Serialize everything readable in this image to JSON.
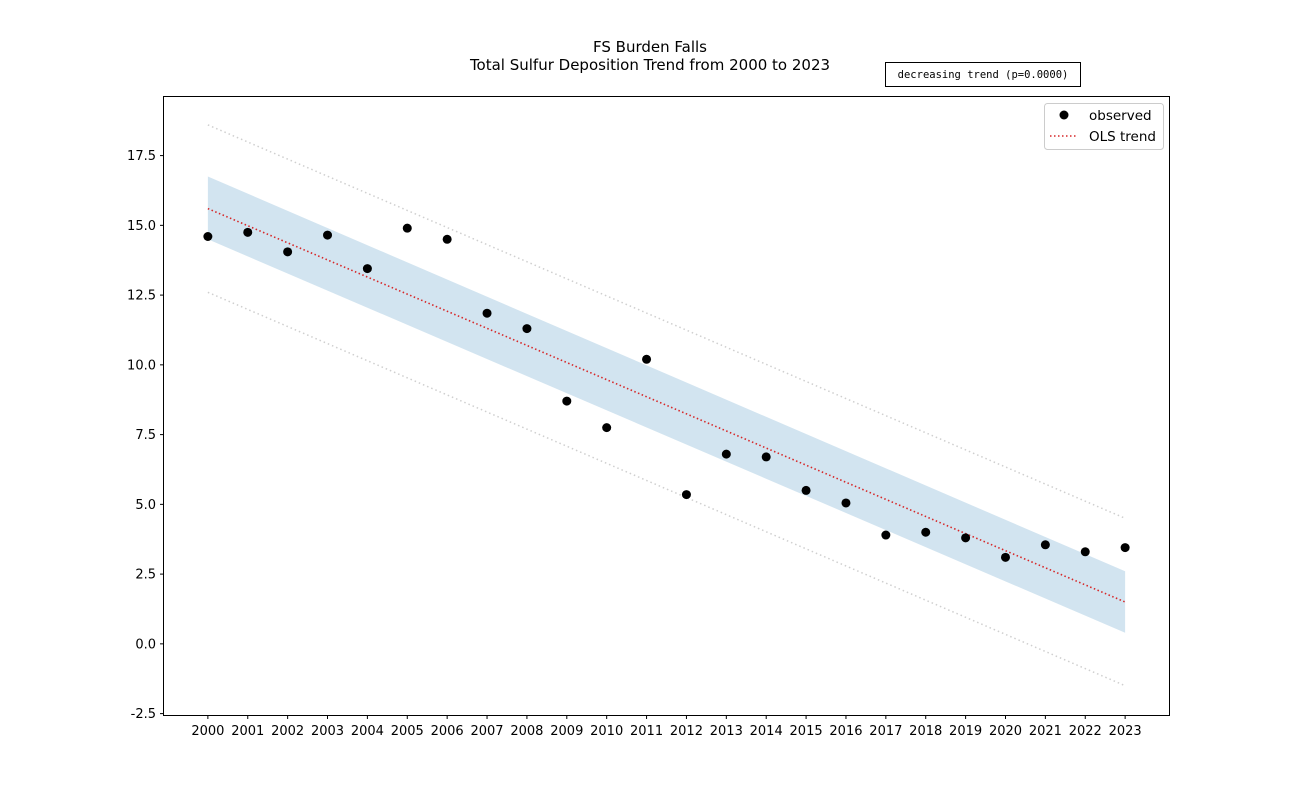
{
  "chart_data": {
    "type": "scatter",
    "title": "FS Burden Falls",
    "subtitle": "Total Sulfur Deposition Trend from 2000 to 2023",
    "annotation": "decreasing trend (p=0.0000)",
    "x": [
      2000,
      2001,
      2002,
      2003,
      2004,
      2005,
      2006,
      2007,
      2008,
      2009,
      2010,
      2011,
      2012,
      2013,
      2014,
      2015,
      2016,
      2017,
      2018,
      2019,
      2020,
      2021,
      2022,
      2023
    ],
    "x_tick_labels": [
      "2000",
      "2001",
      "2002",
      "2003",
      "2004",
      "2005",
      "2006",
      "2007",
      "2008",
      "2009",
      "2010",
      "2011",
      "2012",
      "2013",
      "2014",
      "2015",
      "2016",
      "2017",
      "2018",
      "2019",
      "2020",
      "2021",
      "2022",
      "2023"
    ],
    "series": [
      {
        "name": "observed",
        "kind": "points",
        "color": "#000000",
        "values": [
          14.6,
          14.75,
          14.05,
          14.65,
          13.45,
          14.9,
          14.5,
          11.85,
          11.3,
          8.7,
          7.75,
          10.2,
          5.35,
          6.8,
          6.7,
          5.5,
          5.05,
          3.9,
          4.0,
          3.8,
          3.1,
          3.55,
          3.3,
          3.45
        ]
      },
      {
        "name": "OLS trend",
        "kind": "line",
        "style": "dotted",
        "color": "#d62728",
        "endpoints": [
          15.6,
          1.5
        ]
      }
    ],
    "confidence_band": {
      "color": "#1f77b4",
      "opacity": 0.2,
      "lower": [
        14.5,
        0.4
      ],
      "upper": [
        16.75,
        2.6
      ]
    },
    "prediction_interval": {
      "color": "#bbbbbb",
      "style": "dotted",
      "lower": [
        12.6,
        -1.5
      ],
      "upper": [
        18.6,
        4.5
      ]
    },
    "y_ticks": [
      "-2.5",
      "0.0",
      "2.5",
      "5.0",
      "7.5",
      "10.0",
      "12.5",
      "15.0",
      "17.5"
    ],
    "y_tick_values": [
      -2.5,
      0,
      2.5,
      5,
      7.5,
      10,
      12.5,
      15,
      17.5
    ],
    "xlim": [
      1998.9,
      2024.1
    ],
    "ylim": [
      -2.55,
      19.6
    ],
    "xlabel": "",
    "ylabel": "",
    "grid": false,
    "legend_position": "top-right"
  }
}
